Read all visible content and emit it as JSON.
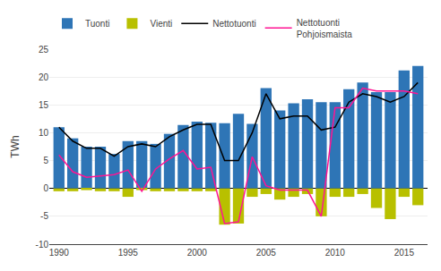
{
  "chart_data": {
    "type": "bar",
    "ylabel": "TWh",
    "x": [
      1990,
      1991,
      1992,
      1993,
      1994,
      1995,
      1996,
      1997,
      1998,
      1999,
      2000,
      2001,
      2002,
      2003,
      2004,
      2005,
      2006,
      2007,
      2008,
      2009,
      2010,
      2011,
      2012,
      2013,
      2014,
      2015,
      2016
    ],
    "series": [
      {
        "name": "Tuonti",
        "type": "bar",
        "color": "#2e75b6",
        "values": [
          11.0,
          9.0,
          7.5,
          7.5,
          6.2,
          8.5,
          8.5,
          8.0,
          9.8,
          11.4,
          12.0,
          11.8,
          11.7,
          13.4,
          11.6,
          18.0,
          14.0,
          15.3,
          16.0,
          15.5,
          15.5,
          17.8,
          19.0,
          17.3,
          17.3,
          21.2,
          22.0
        ]
      },
      {
        "name": "Vienti",
        "type": "bar",
        "color": "#b8c000",
        "values": [
          -0.5,
          -0.5,
          -0.3,
          -0.5,
          -0.5,
          -1.5,
          -0.3,
          -0.5,
          -0.5,
          -0.5,
          -0.5,
          -0.5,
          -6.5,
          -6.3,
          -1.5,
          -1.0,
          -2.0,
          -1.5,
          -1.0,
          -5.0,
          -1.5,
          -1.5,
          -1.0,
          -3.5,
          -5.5,
          -1.5,
          -3.0
        ]
      },
      {
        "name": "Nettotuonti",
        "type": "line",
        "color": "#000000",
        "values": [
          11.0,
          8.5,
          7.2,
          7.2,
          5.8,
          7.5,
          8.0,
          7.5,
          9.3,
          10.5,
          11.5,
          11.5,
          5.0,
          5.0,
          10.0,
          17.0,
          12.5,
          13.0,
          13.0,
          10.5,
          11.0,
          15.5,
          17.0,
          16.5,
          15.5,
          16.5,
          19.0
        ]
      },
      {
        "name": "Nettotuonti\nPohjoismaista",
        "type": "line",
        "color": "#ff1493",
        "values": [
          6.0,
          3.0,
          2.0,
          2.2,
          2.5,
          3.3,
          -0.5,
          3.5,
          5.3,
          6.8,
          3.5,
          3.8,
          -6.3,
          -6.0,
          5.7,
          0.5,
          -0.3,
          -0.3,
          -0.3,
          -5.0,
          14.5,
          14.5,
          18.0,
          17.5,
          17.5,
          17.5,
          17.0
        ]
      }
    ],
    "xlim": [
      1989.3,
      2016.7
    ],
    "xticks": [
      1990,
      1995,
      2000,
      2005,
      2010,
      2015
    ],
    "ylim": [
      -10,
      25
    ],
    "yticks": [
      -10,
      -5,
      0,
      5,
      10,
      15,
      20,
      25
    ],
    "grid": true,
    "legend": "upper left"
  }
}
